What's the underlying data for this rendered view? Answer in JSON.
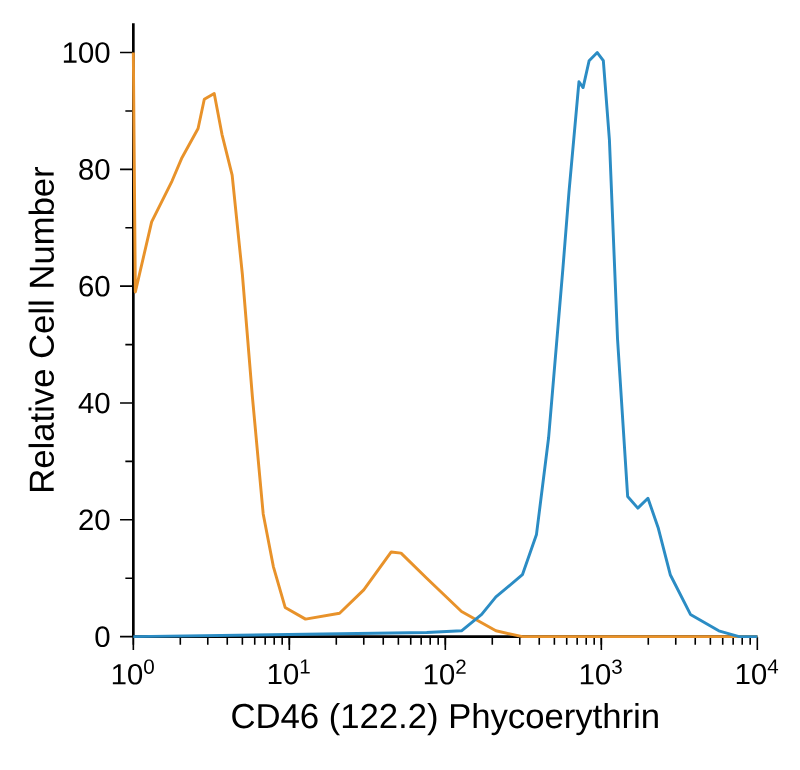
{
  "chart_data": {
    "type": "line",
    "xlabel": "CD46 (122.2) Phycoerythrin",
    "ylabel": "Relative Cell Number",
    "log": "x",
    "xlim": [
      1,
      10000
    ],
    "ylim": [
      0,
      105
    ],
    "xticks": [
      {
        "value": 1,
        "label": "10$^{0}$"
      },
      {
        "value": 10,
        "label": "10$^{1}$"
      },
      {
        "value": 100,
        "label": "10$^{2}$"
      },
      {
        "value": 1000,
        "label": "10$^{3}$"
      },
      {
        "value": 10000,
        "label": "10$^{4}$"
      }
    ],
    "yticks": [
      0,
      20,
      40,
      60,
      80,
      100
    ],
    "grid": false,
    "series": [
      {
        "color": "#e8922a",
        "x": [
          1,
          1.03,
          1.31,
          1.77,
          2.05,
          2.6,
          2.85,
          3.3,
          3.7,
          4.3,
          5.0,
          5.8,
          6.8,
          7.9,
          9.4,
          12.7,
          21,
          30,
          45,
          52,
          76,
          127,
          211,
          312,
          10000
        ],
        "values": [
          100,
          59,
          71,
          78,
          82,
          87,
          92,
          93,
          86,
          79,
          62,
          41,
          21,
          12,
          5,
          3,
          4,
          8,
          14.5,
          14.3,
          10,
          4.3,
          1,
          0,
          0
        ]
      },
      {
        "color": "#2b8cc4",
        "x": [
          1,
          76,
          127,
          171,
          211,
          312,
          384,
          459,
          567,
          620,
          719,
          764,
          835,
          942,
          1030,
          1127,
          1270,
          1475,
          1714,
          1990,
          2311,
          2767,
          3727,
          5662,
          7640,
          10000
        ],
        "values": [
          0,
          0.7,
          1,
          3.8,
          6.8,
          10.6,
          17.5,
          34,
          63,
          76,
          95,
          94,
          98.6,
          100,
          98.6,
          85,
          51,
          24,
          22,
          23.7,
          18.7,
          10.6,
          3.8,
          1,
          0,
          0
        ]
      }
    ]
  }
}
